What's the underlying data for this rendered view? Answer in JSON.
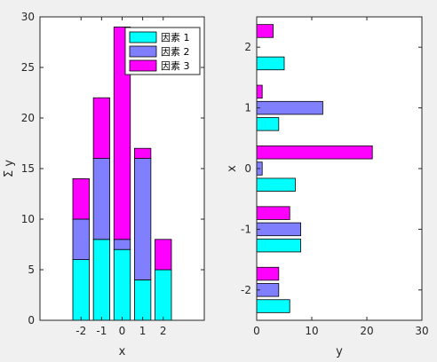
{
  "chart_data": [
    {
      "type": "bar",
      "orientation": "vertical",
      "stacked": true,
      "x": [
        -2,
        -1,
        0,
        1,
        2
      ],
      "tick_labels_x": [
        "-2",
        "-1",
        "0",
        "1",
        "2"
      ],
      "xlim": [
        -4,
        4
      ],
      "ylim": [
        0,
        30
      ],
      "yticks": [
        0,
        5,
        10,
        15,
        20,
        25,
        30
      ],
      "xlabel": "x",
      "ylabel": "Σ y",
      "grid": false,
      "legend": {
        "placement": "top-right"
      },
      "series": [
        {
          "name": "因素 1",
          "color": "#00ffff",
          "values": [
            6,
            8,
            7,
            4,
            5
          ]
        },
        {
          "name": "因素 2",
          "color": "#8080ff",
          "values": [
            4,
            8,
            1,
            12,
            0
          ]
        },
        {
          "name": "因素 3",
          "color": "#ff00ff",
          "values": [
            4,
            6,
            21,
            1,
            3
          ]
        }
      ]
    },
    {
      "type": "bar",
      "orientation": "horizontal",
      "stacked": false,
      "x": [
        -2,
        -1,
        0,
        1,
        2
      ],
      "tick_labels_y": [
        "-2",
        "-1",
        "0",
        "1",
        "2"
      ],
      "ylim": [
        -2.5,
        2.5
      ],
      "xlim": [
        0,
        30
      ],
      "xticks": [
        0,
        10,
        20,
        30
      ],
      "xlabel": "y",
      "ylabel": "x",
      "grid": false,
      "series": [
        {
          "name": "因素 1",
          "color": "#00ffff",
          "values": [
            6,
            8,
            7,
            4,
            5
          ]
        },
        {
          "name": "因素 2",
          "color": "#8080ff",
          "values": [
            4,
            8,
            1,
            12,
            0
          ]
        },
        {
          "name": "因素 3",
          "color": "#ff00ff",
          "values": [
            4,
            6,
            21,
            1,
            3
          ]
        }
      ]
    }
  ]
}
